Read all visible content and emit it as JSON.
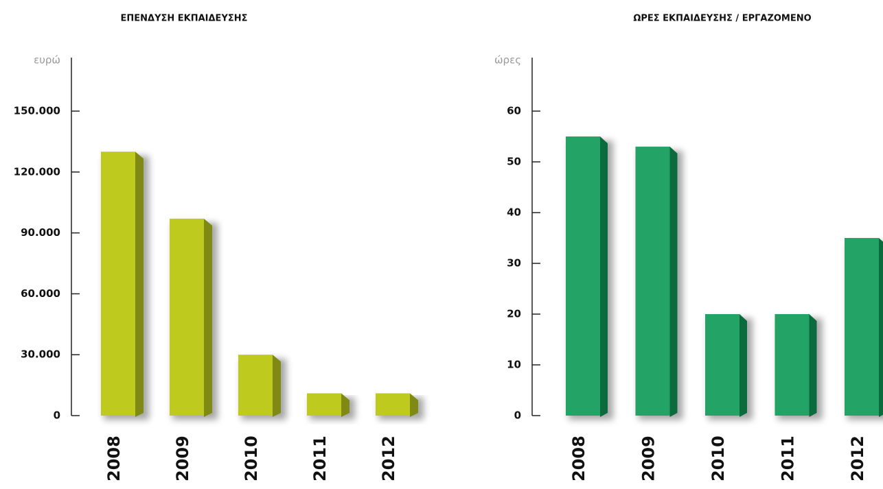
{
  "chart_data": [
    {
      "type": "bar",
      "title": "ΕΠΕΝΔΥΣΗ ΕΚΠΑΙΔΕΥΣΗΣ",
      "y_label": "ευρώ",
      "categories": [
        "2008",
        "2009",
        "2010",
        "2011",
        "2012"
      ],
      "values": [
        130000,
        97000,
        30000,
        11000,
        11000
      ],
      "color": "#bfca1f",
      "side_color": "#7f8914",
      "ylim": [
        0,
        150000
      ],
      "yticks": [
        0,
        {
          "value": 30000,
          "label": "30.000"
        },
        {
          "value": 60000,
          "label": "60.000"
        },
        {
          "value": 90000,
          "label": "90.000"
        },
        {
          "value": 120000,
          "label": "120.000"
        },
        {
          "value": 150000,
          "label": "150.000"
        }
      ]
    },
    {
      "type": "bar",
      "title": "ΩΡΕΣ ΕΚΠΑΙΔΕΥΣΗΣ / ΕΡΓΑΖΟΜΕΝΟ",
      "y_label": "ώρες",
      "categories": [
        "2008",
        "2009",
        "2010",
        "2011",
        "2012"
      ],
      "values": [
        55,
        53,
        20,
        20,
        35
      ],
      "color": "#23a366",
      "side_color": "#0c6b3c",
      "ylim": [
        0,
        60
      ],
      "yticks": [
        0,
        10,
        20,
        30,
        40,
        50,
        60
      ]
    }
  ]
}
